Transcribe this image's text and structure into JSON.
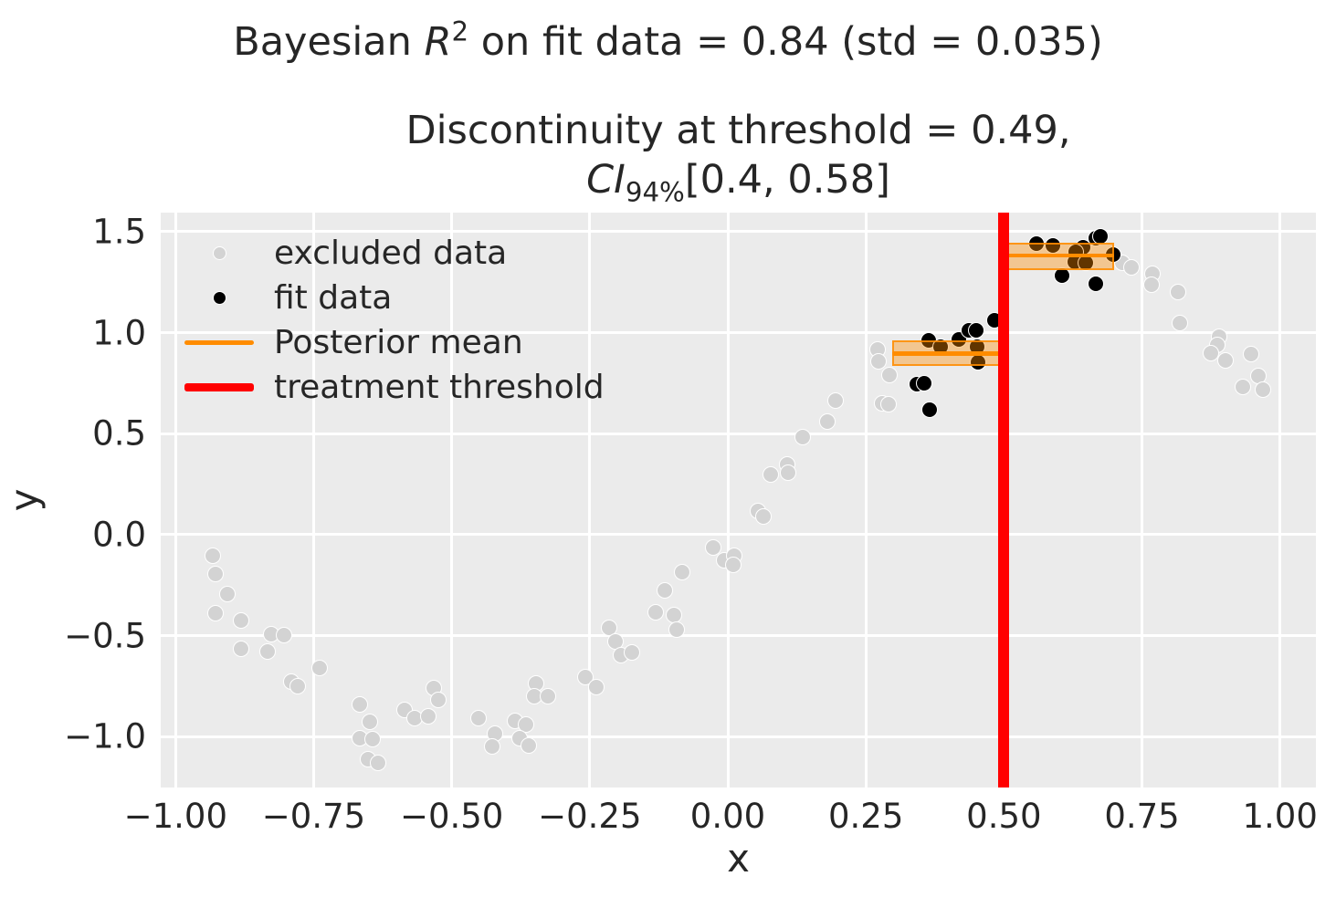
{
  "figure": {
    "suptitle": {
      "prefix": "Bayesian ",
      "math_var": "R",
      "math_sup": "2",
      "suffix": " on fit data = 0.84 (std = 0.035)"
    },
    "subtitle": {
      "line1": "Discontinuity at threshold = 0.49,",
      "ci_var": "CI",
      "ci_sub": "94%",
      "ci_rest": "[0.4, 0.58]"
    }
  },
  "axes": {
    "xlabel": "x",
    "ylabel": "y",
    "xlim": [
      -1.027,
      1.065
    ],
    "ylim": [
      -1.251,
      1.594
    ],
    "xtick_values": [
      -1.0,
      -0.75,
      -0.5,
      -0.25,
      0.0,
      0.25,
      0.5,
      0.75,
      1.0
    ],
    "xtick_labels": [
      "−1.00",
      "−0.75",
      "−0.50",
      "−0.25",
      "0.00",
      "0.25",
      "0.50",
      "0.75",
      "1.00"
    ],
    "ytick_values": [
      -1.0,
      -0.5,
      0.0,
      0.5,
      1.0,
      1.5
    ],
    "ytick_labels": [
      "−1.0",
      "−0.5",
      "0.0",
      "0.5",
      "1.0",
      "1.5"
    ],
    "grid": true
  },
  "legend": {
    "position": "upper-left",
    "items": [
      {
        "label": "excluded data",
        "marker": "dot",
        "color": "#d3d3d3"
      },
      {
        "label": "fit data",
        "marker": "dot",
        "color": "#000000"
      },
      {
        "label": "Posterior mean",
        "marker": "line",
        "color": "#ff8c00",
        "thickness": 4.5
      },
      {
        "label": "treatment threshold",
        "marker": "line",
        "color": "#ff0000",
        "thickness": 9
      }
    ]
  },
  "colors": {
    "figure_bg": "#ffffff",
    "axes_bg": "#ebebeb",
    "grid": "#ffffff",
    "text": "#262626",
    "excluded": "#d3d3d3",
    "fit": "#000000",
    "marker_edge": "#ffffff",
    "posterior_mean": "#ff8c00",
    "band_fill": "rgba(255,140,0,0.38)",
    "band_edge": "rgba(255,140,0,0.85)",
    "threshold": "#ff0000"
  },
  "chart_data": {
    "type": "scatter",
    "title": "Bayesian R^2 on fit data = 0.84 (std = 0.035)",
    "subtitle": "Discontinuity at threshold = 0.49, CI_94% [0.4, 0.58]",
    "xlabel": "x",
    "ylabel": "y",
    "xlim": [
      -1.027,
      1.065
    ],
    "ylim": [
      -1.251,
      1.594
    ],
    "threshold_x": 0.5,
    "discontinuity": 0.49,
    "discontinuity_ci": [
      0.4,
      0.58
    ],
    "series": [
      {
        "name": "excluded data",
        "points": [
          [
            -0.932,
            -0.105
          ],
          [
            -0.928,
            -0.195
          ],
          [
            -0.906,
            -0.293
          ],
          [
            -0.928,
            -0.388
          ],
          [
            -0.881,
            -0.426
          ],
          [
            -0.827,
            -0.492
          ],
          [
            -0.804,
            -0.497
          ],
          [
            -0.882,
            -0.564
          ],
          [
            -0.833,
            -0.579
          ],
          [
            -0.74,
            -0.659
          ],
          [
            -0.79,
            -0.727
          ],
          [
            -0.779,
            -0.749
          ],
          [
            -0.666,
            -0.839
          ],
          [
            -0.648,
            -0.925
          ],
          [
            -0.666,
            -1.008
          ],
          [
            -0.644,
            -1.012
          ],
          [
            -0.652,
            -1.109
          ],
          [
            -0.633,
            -1.131
          ],
          [
            -0.586,
            -0.865
          ],
          [
            -0.567,
            -0.91
          ],
          [
            -0.543,
            -0.9
          ],
          [
            -0.533,
            -0.757
          ],
          [
            -0.525,
            -0.816
          ],
          [
            -0.451,
            -0.906
          ],
          [
            -0.421,
            -0.986
          ],
          [
            -0.426,
            -1.05
          ],
          [
            -0.385,
            -0.921
          ],
          [
            -0.366,
            -0.94
          ],
          [
            -0.377,
            -1.008
          ],
          [
            -0.36,
            -1.045
          ],
          [
            -0.348,
            -0.737
          ],
          [
            -0.35,
            -0.798
          ],
          [
            -0.326,
            -0.798
          ],
          [
            -0.258,
            -0.704
          ],
          [
            -0.238,
            -0.755
          ],
          [
            -0.215,
            -0.462
          ],
          [
            -0.203,
            -0.527
          ],
          [
            -0.193,
            -0.598
          ],
          [
            -0.174,
            -0.582
          ],
          [
            -0.131,
            -0.383
          ],
          [
            -0.114,
            -0.274
          ],
          [
            -0.097,
            -0.398
          ],
          [
            -0.093,
            -0.471
          ],
          [
            -0.083,
            -0.184
          ],
          [
            -0.026,
            -0.064
          ],
          [
            -0.006,
            -0.127
          ],
          [
            0.012,
            -0.105
          ],
          [
            0.01,
            -0.151
          ],
          [
            0.055,
            0.117
          ],
          [
            0.064,
            0.088
          ],
          [
            0.078,
            0.299
          ],
          [
            0.108,
            0.349
          ],
          [
            0.109,
            0.309
          ],
          [
            0.136,
            0.481
          ],
          [
            0.18,
            0.561
          ],
          [
            0.195,
            0.664
          ],
          [
            0.271,
            0.915
          ],
          [
            0.273,
            0.859
          ],
          [
            0.293,
            0.789
          ],
          [
            0.28,
            0.651
          ],
          [
            0.291,
            0.647
          ],
          [
            0.715,
            1.347
          ],
          [
            0.731,
            1.325
          ],
          [
            0.769,
            1.29
          ],
          [
            0.767,
            1.238
          ],
          [
            0.815,
            1.202
          ],
          [
            0.818,
            1.046
          ],
          [
            0.889,
            0.978
          ],
          [
            0.886,
            0.941
          ],
          [
            0.874,
            0.9
          ],
          [
            0.902,
            0.861
          ],
          [
            0.948,
            0.893
          ],
          [
            0.961,
            0.786
          ],
          [
            0.932,
            0.732
          ],
          [
            0.969,
            0.719
          ]
        ]
      },
      {
        "name": "fit data",
        "points": [
          [
            0.343,
            0.747
          ],
          [
            0.356,
            0.75
          ],
          [
            0.365,
            0.619
          ],
          [
            0.364,
            0.963
          ],
          [
            0.385,
            0.93
          ],
          [
            0.418,
            0.965
          ],
          [
            0.437,
            1.013
          ],
          [
            0.45,
            1.013
          ],
          [
            0.483,
            1.061
          ],
          [
            0.451,
            0.93
          ],
          [
            0.453,
            0.855
          ],
          [
            0.559,
            1.439
          ],
          [
            0.589,
            1.43
          ],
          [
            0.643,
            1.424
          ],
          [
            0.666,
            1.469
          ],
          [
            0.675,
            1.475
          ],
          [
            0.63,
            1.4
          ],
          [
            0.629,
            1.351
          ],
          [
            0.648,
            1.347
          ],
          [
            0.698,
            1.385
          ],
          [
            0.605,
            1.284
          ],
          [
            0.666,
            1.243
          ]
        ]
      }
    ],
    "posterior_segments": [
      {
        "x_start": 0.297,
        "x_end": 0.5,
        "mean": 0.897,
        "ci_low": 0.834,
        "ci_high": 0.962
      },
      {
        "x_start": 0.5,
        "x_end": 0.7,
        "mean": 1.381,
        "ci_low": 1.309,
        "ci_high": 1.445
      }
    ]
  }
}
